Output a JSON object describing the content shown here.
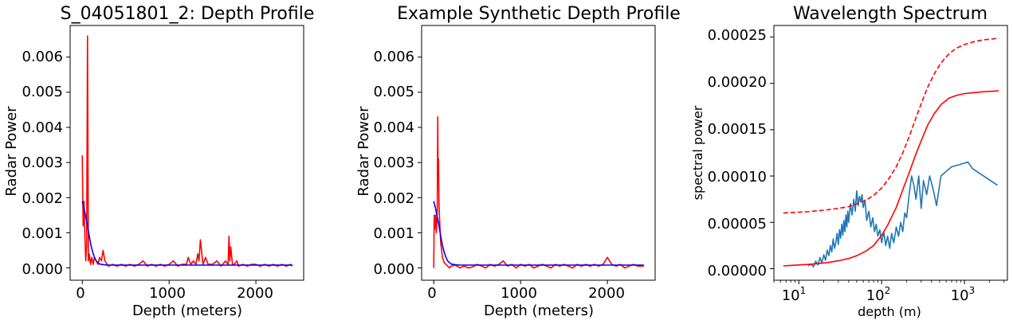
{
  "chart_data": [
    {
      "type": "line",
      "title": "S_04051801_2: Depth Profile",
      "xlabel": "Depth (meters)",
      "ylabel": "Radar Power",
      "xlim": [
        -140,
        2550
      ],
      "ylim": [
        -0.00035,
        0.0069
      ],
      "xticks": [
        0,
        1000,
        2000
      ],
      "xtick_labels": [
        "0",
        "1000",
        "2000"
      ],
      "yticks": [
        0,
        0.001,
        0.002,
        0.003,
        0.004,
        0.005,
        0.006
      ],
      "ytick_labels": [
        "0.000",
        "0.001",
        "0.002",
        "0.003",
        "0.004",
        "0.005",
        "0.006"
      ],
      "grid": false,
      "series": [
        {
          "color": "#ff0000",
          "x": [
            0,
            10,
            20,
            30,
            40,
            50,
            60,
            70,
            80,
            95,
            110,
            125,
            140,
            160,
            180,
            200,
            220,
            240,
            260,
            300,
            350,
            400,
            450,
            500,
            550,
            600,
            650,
            700,
            750,
            800,
            850,
            900,
            950,
            1000,
            1050,
            1100,
            1150,
            1200,
            1220,
            1250,
            1280,
            1310,
            1330,
            1345,
            1360,
            1390,
            1420,
            1450,
            1500,
            1550,
            1600,
            1650,
            1680,
            1690,
            1700,
            1710,
            1730,
            1750,
            1780,
            1800,
            1850,
            1900,
            1950,
            2000,
            2050,
            2100,
            2150,
            2200,
            2250,
            2300,
            2350,
            2400,
            2420
          ],
          "y": [
            0.0032,
            0.0012,
            0.0019,
            0.0009,
            0.0002,
            0.0006,
            0.0066,
            0.0002,
            0.0004,
            0.0001,
            0.0003,
            0.0001,
            0.0003,
            0.0002,
            0.0001,
            0.0003,
            0.0002,
            0.0005,
            0.0002,
            5e-05,
            0.0001,
            5e-05,
            0.0001,
            5e-05,
            0.0001,
            5e-05,
            0.0001,
            0.0002,
            5e-05,
            0.0001,
            5e-05,
            0.0001,
            5e-05,
            0.0001,
            0.0002,
            5e-05,
            0.0001,
            0.0001,
            0.0003,
            0.0001,
            0.0002,
            0.0001,
            0.0004,
            0.0002,
            0.0008,
            0.0001,
            0.0003,
            0.0001,
            0.0001,
            0.0002,
            5e-05,
            0.0002,
            0.0001,
            0.0009,
            0.0002,
            0.0006,
            0.0001,
            0.0001,
            0.0002,
            5e-05,
            0.0001,
            5e-05,
            0.0001,
            0.0001,
            5e-05,
            0.0001,
            5e-05,
            0.0001,
            5e-05,
            0.0001,
            5e-05,
            0.0001,
            5e-05
          ]
        },
        {
          "color": "#0000ff",
          "x": [
            0,
            20,
            40,
            60,
            80,
            100,
            120,
            140,
            160,
            180,
            200,
            250,
            300,
            400,
            600,
            1000,
            1500,
            2000,
            2420
          ],
          "y": [
            0.0019,
            0.0017,
            0.00145,
            0.0012,
            0.0009,
            0.00065,
            0.00045,
            0.0003,
            0.0002,
            0.00015,
            0.00011,
            9e-05,
            8e-05,
            8e-05,
            8e-05,
            8e-05,
            8e-05,
            8e-05,
            8e-05
          ]
        }
      ]
    },
    {
      "type": "line",
      "title": "Example Synthetic Depth Profile",
      "xlabel": "Depth (meters)",
      "ylabel": "Radar Power",
      "xlim": [
        -140,
        2550
      ],
      "ylim": [
        -0.00035,
        0.0069
      ],
      "xticks": [
        0,
        1000,
        2000
      ],
      "xtick_labels": [
        "0",
        "1000",
        "2000"
      ],
      "yticks": [
        0,
        0.001,
        0.002,
        0.003,
        0.004,
        0.005,
        0.006
      ],
      "ytick_labels": [
        "0.000",
        "0.001",
        "0.002",
        "0.003",
        "0.004",
        "0.005",
        "0.006"
      ],
      "grid": false,
      "series": [
        {
          "color": "#ff0000",
          "x": [
            0,
            5,
            10,
            20,
            30,
            40,
            45,
            50,
            55,
            60,
            70,
            80,
            90,
            100,
            120,
            140,
            160,
            180,
            200,
            250,
            300,
            350,
            400,
            450,
            500,
            550,
            600,
            650,
            700,
            750,
            800,
            850,
            900,
            950,
            1000,
            1050,
            1100,
            1150,
            1200,
            1250,
            1300,
            1350,
            1400,
            1450,
            1500,
            1550,
            1600,
            1650,
            1700,
            1750,
            1800,
            1850,
            1900,
            1950,
            2000,
            2050,
            2100,
            2150,
            2200,
            2250,
            2300,
            2350,
            2420
          ],
          "y": [
            0.0,
            0.0015,
            0.0011,
            0.0015,
            0.001,
            0.0016,
            0.0043,
            0.0025,
            0.0031,
            0.0018,
            0.0012,
            0.0007,
            0.0005,
            0.0003,
            0.00015,
            0.0001,
            5e-05,
            0.0,
            5e-05,
            8e-05,
            0.0,
            5e-05,
            0.0,
            3e-05,
            0.0001,
            5e-05,
            0.0,
            0.0001,
            5e-05,
            0.0001,
            0.0002,
            5e-05,
            0.0001,
            0.0,
            0.0001,
            5e-05,
            0.0001,
            0.0,
            5e-05,
            0.0001,
            5e-05,
            0.0,
            0.0001,
            5e-05,
            0.0001,
            5e-05,
            0.0,
            0.0001,
            5e-05,
            0.0001,
            5e-05,
            0.0001,
            5e-05,
            0.0001,
            0.0003,
            0.0001,
            5e-05,
            0.0001,
            0.0,
            5e-05,
            0.0001,
            5e-05,
            5e-05
          ]
        },
        {
          "color": "#0000ff",
          "x": [
            0,
            20,
            40,
            60,
            80,
            100,
            120,
            140,
            160,
            180,
            200,
            250,
            300,
            400,
            600,
            1000,
            1500,
            2000,
            2420
          ],
          "y": [
            0.0019,
            0.0017,
            0.00145,
            0.0012,
            0.0009,
            0.00065,
            0.00045,
            0.0003,
            0.0002,
            0.00015,
            0.00011,
            9e-05,
            8e-05,
            8e-05,
            8e-05,
            8e-05,
            8e-05,
            8e-05,
            8e-05
          ]
        }
      ]
    },
    {
      "type": "line",
      "title": "Wavelength Spectrum",
      "xlabel": "depth (m)",
      "ylabel": "spectral power",
      "xscale": "log",
      "xlim": [
        5,
        3300
      ],
      "ylim": [
        -1.25e-05,
        0.0002625
      ],
      "xticks": [
        10,
        100,
        1000
      ],
      "xtick_labels": [
        "10",
        "10",
        "10"
      ],
      "xtick_exponents": [
        "1",
        "2",
        "3"
      ],
      "yticks": [
        0,
        5e-05,
        0.0001,
        0.00015,
        0.0002,
        0.00025
      ],
      "ytick_labels": [
        "0.00000",
        "0.00005",
        "0.00010",
        "0.00015",
        "0.00020",
        "0.00025"
      ],
      "grid": false,
      "series": [
        {
          "color": "#1f77b4",
          "style": "solid",
          "x": [
            13,
            14,
            15,
            16,
            17,
            18,
            19,
            20,
            21,
            22,
            23,
            24,
            25,
            26,
            27,
            28,
            29,
            30,
            31,
            32,
            33,
            34,
            35,
            36,
            37,
            38,
            39,
            40,
            42,
            44,
            46,
            48,
            50,
            52,
            54,
            56,
            58,
            60,
            63,
            66,
            70,
            74,
            78,
            82,
            86,
            90,
            95,
            100,
            106,
            112,
            118,
            125,
            132,
            140,
            150,
            160,
            170,
            180,
            190,
            200,
            215,
            230,
            245,
            260,
            280,
            300,
            320,
            350,
            380,
            420,
            460,
            520,
            600,
            700,
            850,
            1100,
            1250,
            2500
          ],
          "y": [
            3e-06,
            5e-06,
            2e-06,
            8e-06,
            4e-06,
            1.2e-05,
            6e-06,
            1.5e-05,
            9e-06,
            2e-05,
            1.4e-05,
            2.5e-05,
            1.8e-05,
            3.2e-05,
            2.2e-05,
            2.8e-05,
            3.8e-05,
            2.6e-05,
            4.2e-05,
            3.3e-05,
            4.8e-05,
            3.6e-05,
            5.2e-05,
            4e-05,
            5.8e-05,
            4.5e-05,
            6.2e-05,
            5e-05,
            7e-05,
            5.8e-05,
            7.5e-05,
            6.2e-05,
            8.4e-05,
            6.8e-05,
            7.8e-05,
            7.2e-05,
            8e-05,
            6.6e-05,
            7.4e-05,
            5.2e-05,
            6.2e-05,
            4.5e-05,
            5.5e-05,
            4e-05,
            4.8e-05,
            3.5e-05,
            4.2e-05,
            2.8e-05,
            4e-05,
            2.5e-05,
            3.5e-05,
            2.2e-05,
            3.8e-05,
            2.8e-05,
            4.5e-05,
            3.5e-05,
            5e-05,
            4e-05,
            6e-05,
            5.5e-05,
            8e-05,
            0.0001,
            9e-05,
            7.5e-05,
            0.0001,
            6.5e-05,
            9.5e-05,
            8e-05,
            0.0001,
            8.5e-05,
            6.8e-05,
            0.0001,
            0.000105,
            0.00011,
            0.000112,
            0.000115,
            0.000108,
            9e-05
          ]
        },
        {
          "color": "#ff0000",
          "style": "dashed",
          "x": [
            6.5,
            8,
            10,
            13,
            17,
            22,
            30,
            40,
            50,
            65,
            80,
            100,
            120,
            150,
            180,
            220,
            260,
            300,
            360,
            430,
            520,
            650,
            800,
            1000,
            1300,
            1700,
            2200,
            2600
          ],
          "y": [
            6e-05,
            6.05e-05,
            6.1e-05,
            6.15e-05,
            6.25e-05,
            6.35e-05,
            6.5e-05,
            6.7e-05,
            7e-05,
            7.4e-05,
            7.9e-05,
            8.7e-05,
            9.6e-05,
            0.00011,
            0.000125,
            0.000145,
            0.000163,
            0.000178,
            0.000196,
            0.00021,
            0.000222,
            0.000232,
            0.000238,
            0.000242,
            0.000245,
            0.000247,
            0.000248,
            0.000249
          ]
        },
        {
          "color": "#ff0000",
          "style": "solid",
          "x": [
            6.5,
            8,
            10,
            13,
            17,
            22,
            30,
            40,
            50,
            65,
            80,
            100,
            120,
            150,
            180,
            220,
            260,
            300,
            360,
            430,
            520,
            650,
            800,
            1000,
            1300,
            1700,
            2200,
            2600
          ],
          "y": [
            3e-06,
            3.5e-06,
            4e-06,
            4.5e-06,
            5.5e-06,
            6.5e-06,
            8.5e-06,
            1.1e-05,
            1.4e-05,
            1.9e-05,
            2.5e-05,
            3.6e-05,
            4.8e-05,
            6.6e-05,
            8.5e-05,
            0.000106,
            0.000124,
            0.000138,
            0.000155,
            0.000167,
            0.000177,
            0.000184,
            0.000187,
            0.000189,
            0.00019,
            0.000191,
            0.0001915,
            0.000192
          ]
        }
      ]
    }
  ]
}
